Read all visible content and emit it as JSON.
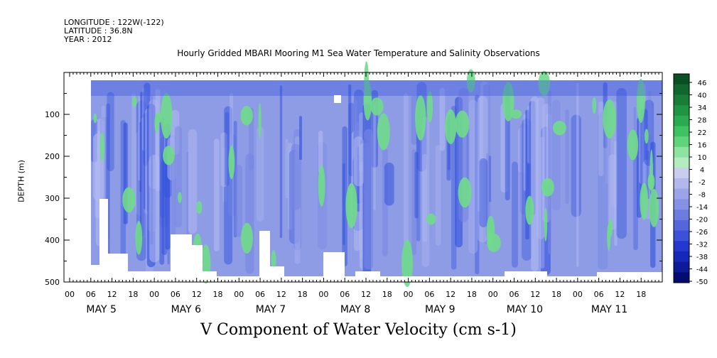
{
  "header": {
    "longitude": "LONGITUDE : 122W(-122)",
    "latitude": "LATITUDE : 36.8N",
    "year": "YEAR : 2012"
  },
  "chart_data": {
    "type": "heatmap",
    "title": "Hourly Gridded MBARI Mooring M1 Sea Water Temperature and Salinity Observations",
    "xlabel": "",
    "ylabel": "DEPTH (m)",
    "caption": "V Component of Water Velocity (cm s-1)",
    "ylim": [
      500,
      0
    ],
    "y_ticks": [
      100,
      200,
      300,
      400,
      500
    ],
    "x_hour_ticks": [
      "00",
      "06",
      "12",
      "18",
      "00",
      "06",
      "12",
      "18",
      "00",
      "06",
      "12",
      "18",
      "00",
      "06",
      "12",
      "18",
      "00",
      "06",
      "12",
      "18",
      "00",
      "06",
      "12",
      "18",
      "00",
      "06",
      "12",
      "18"
    ],
    "day_labels": [
      "MAY  5",
      "MAY  6",
      "MAY  7",
      "MAY  8",
      "MAY  9",
      "MAY 10",
      "MAY 11"
    ],
    "colorbar_levels": [
      46,
      40,
      34,
      28,
      22,
      16,
      10,
      4,
      -2,
      -8,
      -14,
      -20,
      -26,
      -32,
      -38,
      -44,
      -50
    ],
    "colorbar_colors": [
      "#0a4f22",
      "#10662c",
      "#177d37",
      "#1f9442",
      "#2aab4f",
      "#3fc262",
      "#5fd47a",
      "#8de3a0",
      "#b4ecc0",
      "#c9cef0",
      "#b2b8ec",
      "#9ba4e8",
      "#8591e4",
      "#6d7ce0",
      "#5566dc",
      "#3d50d8",
      "#2438d0",
      "#1628b8",
      "#0c1a9a",
      "#050c70"
    ],
    "background_color": "#8e9ce6",
    "green_color": "#6fdc8a",
    "dark_color": "#3050dc",
    "light_color": "#b0b8f0"
  }
}
